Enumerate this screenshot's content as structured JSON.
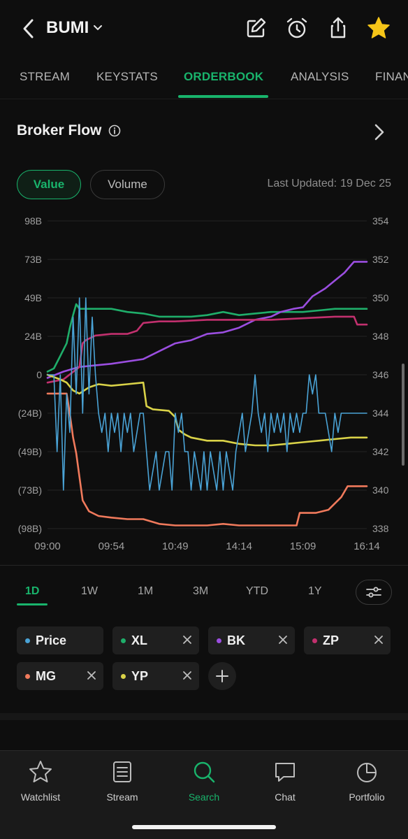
{
  "header": {
    "ticker": "BUMI",
    "icons": [
      "chevron-left-icon",
      "chevron-down-icon",
      "edit-icon",
      "alarm-icon",
      "share-icon",
      "star-icon"
    ]
  },
  "tabs": [
    {
      "label": "STREAM",
      "active": false
    },
    {
      "label": "KEYSTATS",
      "active": false
    },
    {
      "label": "ORDERBOOK",
      "active": true
    },
    {
      "label": "ANALYSIS",
      "active": false
    },
    {
      "label": "FINAN",
      "active": false
    }
  ],
  "section": {
    "title": "Broker Flow"
  },
  "toggle": {
    "value_label": "Value",
    "volume_label": "Volume",
    "selected": "Value"
  },
  "last_updated": {
    "label": "Last Updated:",
    "value": "19 Dec 25"
  },
  "chart_data": {
    "type": "line",
    "x_ticks": [
      "09:00",
      "09:54",
      "10:49",
      "14:14",
      "15:09",
      "16:14"
    ],
    "left_axis": {
      "ticks": [
        "98B",
        "73B",
        "49B",
        "24B",
        "0",
        "(24B)",
        "(49B)",
        "(73B)",
        "(98B)"
      ],
      "ylim": [
        -98,
        98
      ],
      "unit": "B"
    },
    "right_axis": {
      "ticks": [
        "354",
        "352",
        "350",
        "348",
        "346",
        "344",
        "342",
        "340",
        "338"
      ],
      "ylim": [
        338,
        354
      ]
    },
    "xlim": [
      0,
      100
    ],
    "series": [
      {
        "name": "XL",
        "color": "#1fae6a",
        "axis": "left",
        "points": [
          [
            0,
            2
          ],
          [
            2,
            4
          ],
          [
            4,
            12
          ],
          [
            6,
            20
          ],
          [
            7,
            30
          ],
          [
            8,
            38
          ],
          [
            9,
            45
          ],
          [
            10,
            42
          ],
          [
            12,
            42
          ],
          [
            15,
            42
          ],
          [
            20,
            42
          ],
          [
            25,
            40
          ],
          [
            30,
            39
          ],
          [
            35,
            37
          ],
          [
            40,
            37
          ],
          [
            45,
            37
          ],
          [
            50,
            38
          ],
          [
            55,
            40
          ],
          [
            60,
            38
          ],
          [
            65,
            39
          ],
          [
            70,
            40
          ],
          [
            75,
            40
          ],
          [
            80,
            40
          ],
          [
            85,
            41
          ],
          [
            90,
            42
          ],
          [
            95,
            42
          ],
          [
            100,
            42
          ]
        ]
      },
      {
        "name": "BK",
        "color": "#9b4ee0",
        "axis": "left",
        "points": [
          [
            0,
            -2
          ],
          [
            5,
            2
          ],
          [
            10,
            5
          ],
          [
            20,
            7
          ],
          [
            30,
            10
          ],
          [
            35,
            15
          ],
          [
            40,
            20
          ],
          [
            45,
            22
          ],
          [
            50,
            26
          ],
          [
            55,
            27
          ],
          [
            60,
            30
          ],
          [
            65,
            35
          ],
          [
            70,
            37
          ],
          [
            73,
            40
          ],
          [
            77,
            42
          ],
          [
            80,
            43
          ],
          [
            83,
            50
          ],
          [
            87,
            55
          ],
          [
            90,
            60
          ],
          [
            93,
            65
          ],
          [
            96,
            72
          ],
          [
            100,
            72
          ]
        ]
      },
      {
        "name": "ZP",
        "color": "#c2306e",
        "axis": "left",
        "points": [
          [
            0,
            -5
          ],
          [
            5,
            -3
          ],
          [
            10,
            5
          ],
          [
            11,
            20
          ],
          [
            12,
            22
          ],
          [
            15,
            25
          ],
          [
            20,
            26
          ],
          [
            25,
            26
          ],
          [
            28,
            28
          ],
          [
            30,
            33
          ],
          [
            35,
            34
          ],
          [
            40,
            34
          ],
          [
            50,
            35
          ],
          [
            60,
            35
          ],
          [
            70,
            35
          ],
          [
            80,
            36
          ],
          [
            90,
            37
          ],
          [
            96,
            37
          ],
          [
            97,
            32
          ],
          [
            100,
            32
          ]
        ]
      },
      {
        "name": "MG",
        "color": "#f07a5c",
        "axis": "left",
        "points": [
          [
            0,
            -12
          ],
          [
            6,
            -12
          ],
          [
            7,
            -25
          ],
          [
            8,
            -40
          ],
          [
            9,
            -50
          ],
          [
            10,
            -65
          ],
          [
            11,
            -80
          ],
          [
            13,
            -87
          ],
          [
            16,
            -90
          ],
          [
            20,
            -91
          ],
          [
            25,
            -92
          ],
          [
            30,
            -92
          ],
          [
            35,
            -95
          ],
          [
            40,
            -96
          ],
          [
            50,
            -96
          ],
          [
            55,
            -95
          ],
          [
            60,
            -96
          ],
          [
            70,
            -96
          ],
          [
            78,
            -96
          ],
          [
            79,
            -88
          ],
          [
            84,
            -88
          ],
          [
            88,
            -86
          ],
          [
            90,
            -82
          ],
          [
            92,
            -78
          ],
          [
            94,
            -71
          ],
          [
            100,
            -71
          ]
        ]
      },
      {
        "name": "YP",
        "color": "#d9d248",
        "axis": "left",
        "points": [
          [
            0,
            0
          ],
          [
            4,
            -3
          ],
          [
            6,
            -5
          ],
          [
            8,
            -10
          ],
          [
            10,
            -12
          ],
          [
            13,
            -8
          ],
          [
            16,
            -6
          ],
          [
            20,
            -7
          ],
          [
            25,
            -6
          ],
          [
            30,
            -5
          ],
          [
            31,
            -20
          ],
          [
            33,
            -22
          ],
          [
            38,
            -23
          ],
          [
            40,
            -27
          ],
          [
            41,
            -35
          ],
          [
            43,
            -38
          ],
          [
            45,
            -40
          ],
          [
            50,
            -42
          ],
          [
            55,
            -42
          ],
          [
            60,
            -44
          ],
          [
            65,
            -45
          ],
          [
            70,
            -45
          ],
          [
            75,
            -44
          ],
          [
            80,
            -43
          ],
          [
            85,
            -42
          ],
          [
            90,
            -41
          ],
          [
            95,
            -40
          ],
          [
            100,
            -40
          ]
        ]
      },
      {
        "name": "Price",
        "color": "#4aa3d6",
        "axis": "right",
        "points": [
          [
            0,
            346
          ],
          [
            2,
            346
          ],
          [
            3,
            342
          ],
          [
            4,
            346
          ],
          [
            5,
            340
          ],
          [
            6,
            345
          ],
          [
            7,
            343
          ],
          [
            8,
            349
          ],
          [
            9,
            345
          ],
          [
            10,
            350
          ],
          [
            11,
            344
          ],
          [
            12,
            350
          ],
          [
            13,
            345
          ],
          [
            14,
            349
          ],
          [
            15,
            346
          ],
          [
            16,
            344
          ],
          [
            17,
            343
          ],
          [
            18,
            344
          ],
          [
            19,
            342
          ],
          [
            20,
            344
          ],
          [
            21,
            343
          ],
          [
            22,
            344
          ],
          [
            23,
            342
          ],
          [
            24,
            344
          ],
          [
            25,
            343
          ],
          [
            26,
            344
          ],
          [
            27,
            342
          ],
          [
            28,
            343
          ],
          [
            29,
            344
          ],
          [
            30,
            344
          ],
          [
            31,
            342
          ],
          [
            32,
            340
          ],
          [
            33,
            341
          ],
          [
            34,
            342
          ],
          [
            35,
            340
          ],
          [
            36,
            341
          ],
          [
            37,
            342
          ],
          [
            38,
            342
          ],
          [
            39,
            340
          ],
          [
            40,
            344
          ],
          [
            41,
            343
          ],
          [
            42,
            344
          ],
          [
            43,
            342
          ],
          [
            44,
            342
          ],
          [
            45,
            340
          ],
          [
            46,
            342
          ],
          [
            47,
            341
          ],
          [
            48,
            340
          ],
          [
            49,
            342
          ],
          [
            50,
            340
          ],
          [
            51,
            342
          ],
          [
            52,
            341
          ],
          [
            53,
            340
          ],
          [
            54,
            342
          ],
          [
            55,
            340
          ],
          [
            56,
            342
          ],
          [
            57,
            341
          ],
          [
            58,
            340
          ],
          [
            59,
            342
          ],
          [
            60,
            343
          ],
          [
            61,
            344
          ],
          [
            62,
            342
          ],
          [
            63,
            343
          ],
          [
            64,
            344
          ],
          [
            65,
            346
          ],
          [
            66,
            344
          ],
          [
            67,
            343
          ],
          [
            68,
            344
          ],
          [
            69,
            342
          ],
          [
            70,
            344
          ],
          [
            71,
            343
          ],
          [
            72,
            344
          ],
          [
            73,
            343
          ],
          [
            74,
            344
          ],
          [
            75,
            342
          ],
          [
            76,
            344
          ],
          [
            77,
            343
          ],
          [
            78,
            344
          ],
          [
            79,
            343
          ],
          [
            80,
            344
          ],
          [
            81,
            344
          ],
          [
            82,
            346
          ],
          [
            83,
            345
          ],
          [
            84,
            346
          ],
          [
            85,
            344
          ],
          [
            86,
            344
          ],
          [
            87,
            344
          ],
          [
            88,
            343
          ],
          [
            89,
            342
          ],
          [
            90,
            344
          ],
          [
            91,
            343
          ],
          [
            92,
            344
          ],
          [
            93,
            344
          ],
          [
            94,
            344
          ],
          [
            95,
            344
          ],
          [
            96,
            344
          ],
          [
            97,
            344
          ],
          [
            98,
            344
          ],
          [
            99,
            344
          ],
          [
            100,
            344
          ]
        ]
      }
    ]
  },
  "ranges": [
    {
      "label": "1D",
      "active": true
    },
    {
      "label": "1W",
      "active": false
    },
    {
      "label": "1M",
      "active": false
    },
    {
      "label": "3M",
      "active": false
    },
    {
      "label": "YTD",
      "active": false
    },
    {
      "label": "1Y",
      "active": false
    }
  ],
  "legend": [
    {
      "label": "Price",
      "color": "#4aa3d6",
      "removable": false
    },
    {
      "label": "XL",
      "color": "#1fae6a",
      "removable": true
    },
    {
      "label": "BK",
      "color": "#9b4ee0",
      "removable": true
    },
    {
      "label": "ZP",
      "color": "#c2306e",
      "removable": true
    },
    {
      "label": "MG",
      "color": "#f07a5c",
      "removable": true
    },
    {
      "label": "YP",
      "color": "#d9d248",
      "removable": true
    }
  ],
  "bottom_nav": [
    {
      "label": "Watchlist",
      "icon": "star-outline-icon",
      "active": false
    },
    {
      "label": "Stream",
      "icon": "stream-icon",
      "active": false
    },
    {
      "label": "Search",
      "icon": "search-icon",
      "active": true
    },
    {
      "label": "Chat",
      "icon": "chat-icon",
      "active": false
    },
    {
      "label": "Portfolio",
      "icon": "pie-chart-icon",
      "active": false
    }
  ],
  "colors": {
    "accent": "#19b46c",
    "background": "#0e0e0e",
    "star": "#f5c518"
  }
}
